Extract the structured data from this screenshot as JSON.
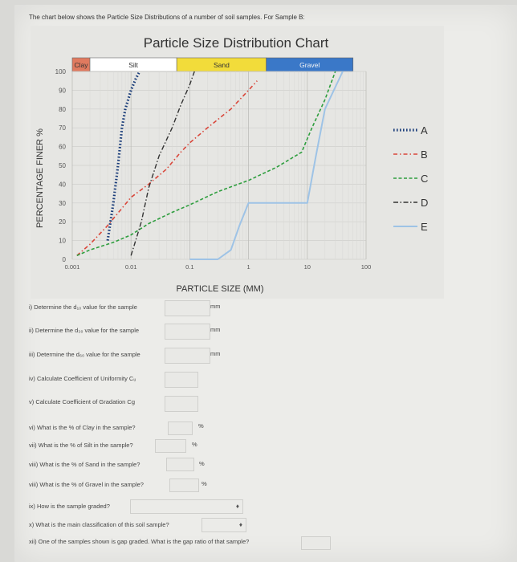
{
  "intro": "The chart below shows the Particle Size Distributions of a number of soil samples. For Sample B:",
  "chart_data": {
    "type": "line",
    "title": "Particle Size Distribution Chart",
    "xlabel": "PARTICLE SIZE (MM)",
    "ylabel": "PERCENTAGE FINER %",
    "x_scale": "log",
    "xlim": [
      0.001,
      100
    ],
    "ylim": [
      0,
      100
    ],
    "x_ticks": [
      "0.001",
      "0.01",
      "0.1",
      "1",
      "10",
      "100"
    ],
    "y_ticks": [
      "0",
      "10",
      "20",
      "30",
      "40",
      "50",
      "60",
      "70",
      "80",
      "90",
      "100"
    ],
    "soil_bands": [
      {
        "label": "Clay",
        "from": 0.001,
        "to": 0.002,
        "color": "#e07a5f"
      },
      {
        "label": "Silt",
        "from": 0.002,
        "to": 0.06,
        "color": "#ffffff"
      },
      {
        "label": "Sand",
        "from": 0.06,
        "to": 2,
        "color": "#f2dc3a"
      },
      {
        "label": "Gravel",
        "from": 2,
        "to": 60,
        "color": "#3a78c8"
      }
    ],
    "legend_position": "right",
    "series": [
      {
        "name": "A",
        "color": "#1a3d7a",
        "dash": "1.6 2.4",
        "width": 3.2,
        "x": [
          0.004,
          0.005,
          0.006,
          0.007,
          0.008,
          0.01,
          0.012,
          0.014
        ],
        "y": [
          10,
          30,
          50,
          70,
          80,
          90,
          96,
          100
        ]
      },
      {
        "name": "B",
        "color": "#d9463a",
        "dash": "5 3 1.5 3",
        "width": 1.6,
        "x": [
          0.0012,
          0.002,
          0.004,
          0.01,
          0.02,
          0.04,
          0.07,
          0.1,
          0.2,
          0.5,
          1.0,
          1.4
        ],
        "y": [
          2,
          8,
          18,
          33,
          40,
          48,
          57,
          62,
          70,
          80,
          90,
          95
        ]
      },
      {
        "name": "C",
        "color": "#2e9e3e",
        "dash": "4 2.5",
        "width": 1.6,
        "x": [
          0.0012,
          0.002,
          0.005,
          0.01,
          0.02,
          0.05,
          0.1,
          0.3,
          1.0,
          3.0,
          8.0,
          12.0,
          20.0,
          30.0
        ],
        "y": [
          2,
          5,
          9,
          13,
          19,
          25,
          29,
          36,
          42,
          49,
          57,
          70,
          85,
          100
        ]
      },
      {
        "name": "D",
        "color": "#333333",
        "dash": "6 2.5 1.5 2.5",
        "width": 1.4,
        "x": [
          0.01,
          0.012,
          0.015,
          0.02,
          0.03,
          0.05,
          0.07,
          0.1,
          0.12
        ],
        "y": [
          2,
          10,
          20,
          38,
          55,
          70,
          82,
          93,
          100
        ]
      },
      {
        "name": "E",
        "color": "#9ec3e6",
        "dash": "",
        "width": 2,
        "x": [
          0.1,
          0.3,
          0.5,
          0.7,
          1.0,
          5.0,
          10.0,
          14.0,
          20.0,
          40.0
        ],
        "y": [
          0,
          0,
          5,
          18,
          30,
          30,
          30,
          55,
          80,
          100
        ]
      }
    ]
  },
  "questions": [
    {
      "text": "i) Determine the d₁₀ value for the sample",
      "unit": "mm"
    },
    {
      "text": "ii) Determine the d₃₀ value for the sample",
      "unit": "mm"
    },
    {
      "text": "iii) Determine the d₆₀ value for the sample",
      "unit": "mm"
    },
    {
      "text": "iv) Calculate Coefficient of Uniformity Cᵤ",
      "unit": ""
    },
    {
      "text": "v) Calculate Coefficient of Gradation Cg",
      "unit": ""
    },
    {
      "text": "vi) What is the % of Clay in the sample?",
      "unit": "%"
    },
    {
      "text": "vii) What is the % of Silt in the sample?",
      "unit": "%"
    },
    {
      "text": "viii) What is the % of Sand in the sample?",
      "unit": "%"
    },
    {
      "text": "viii) What is the % of Gravel in the sample?",
      "unit": "%"
    },
    {
      "text": "ix) How is the sample graded?",
      "unit": ""
    },
    {
      "text": "x) What is the main classification of this soil sample?",
      "unit": ""
    },
    {
      "text": "xii) One of the samples shown is gap graded. What is the gap ratio of that sample?",
      "unit": ""
    }
  ]
}
